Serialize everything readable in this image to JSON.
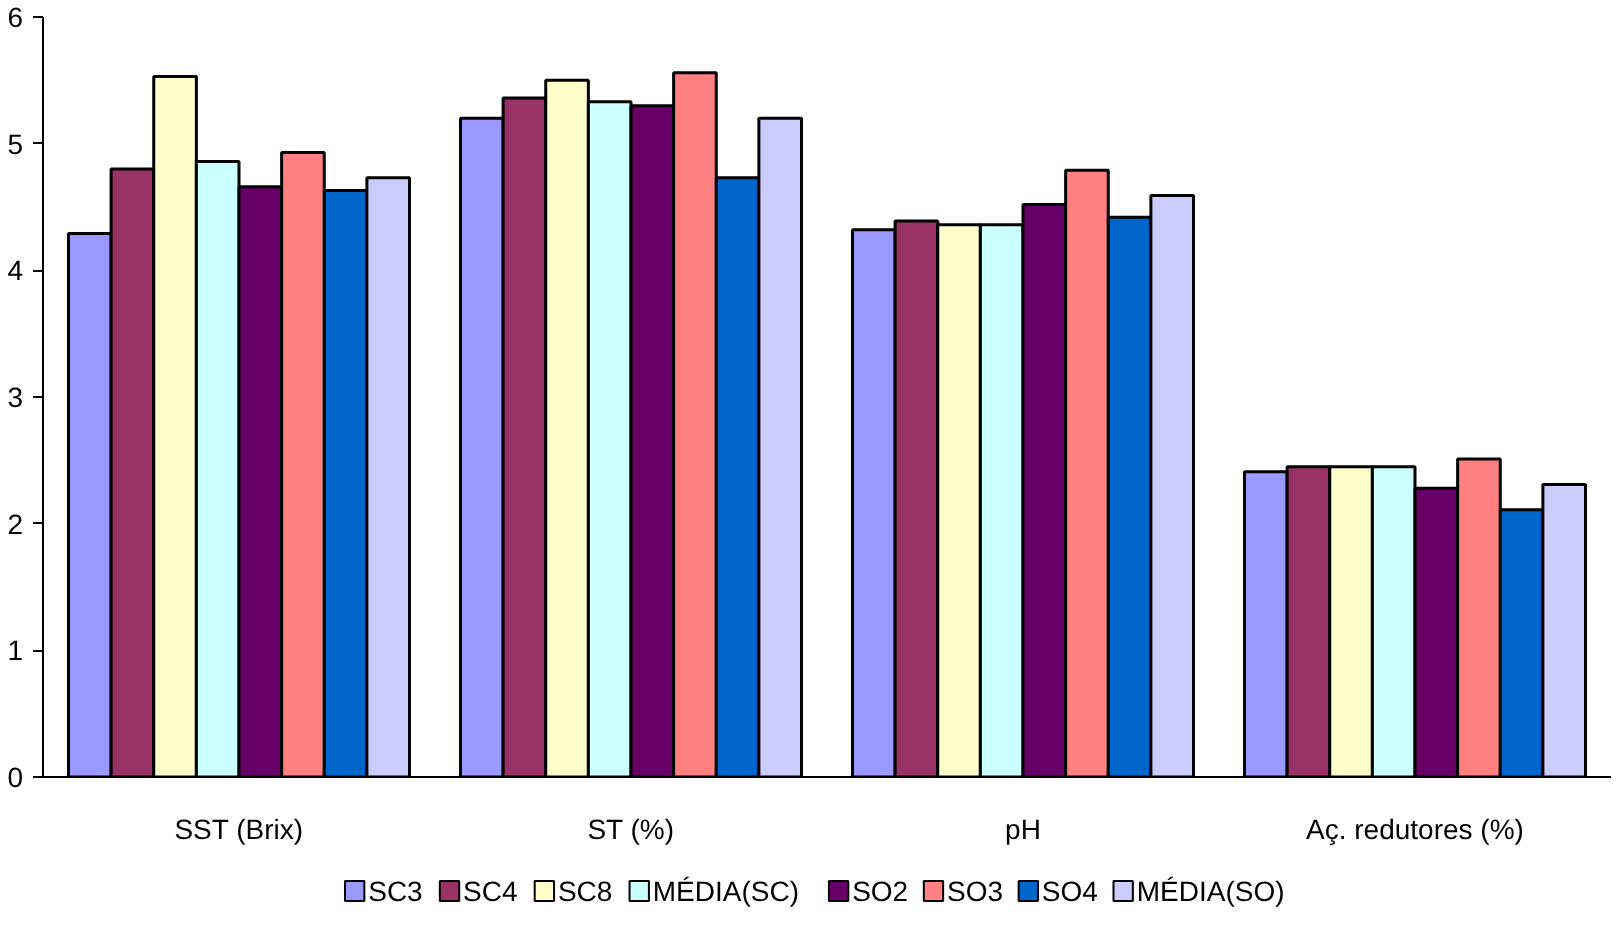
{
  "chart_data": {
    "type": "bar",
    "categories": [
      "SST (Brix)",
      "ST (%)",
      "pH",
      "Aç. redutores (%)"
    ],
    "series": [
      {
        "name": "SC3",
        "color": "#9999ff",
        "values": [
          4.29,
          5.2,
          4.32,
          2.41
        ]
      },
      {
        "name": "SC4",
        "color": "#993366",
        "values": [
          4.8,
          5.36,
          4.39,
          2.45
        ]
      },
      {
        "name": "SC8",
        "color": "#ffffcc",
        "values": [
          5.53,
          5.5,
          4.36,
          2.45
        ]
      },
      {
        "name": "MÉDIA(SC)",
        "color": "#ccffff",
        "values": [
          4.86,
          5.33,
          4.36,
          2.45
        ]
      },
      {
        "name": "SO2",
        "color": "#660066",
        "values": [
          4.66,
          5.3,
          4.52,
          2.28
        ]
      },
      {
        "name": "SO3",
        "color": "#ff8080",
        "values": [
          4.93,
          5.56,
          4.79,
          2.51
        ]
      },
      {
        "name": "SO4",
        "color": "#0066cc",
        "values": [
          4.63,
          4.73,
          4.42,
          2.11
        ]
      },
      {
        "name": "MÉDIA(SO)",
        "color": "#ccccff",
        "values": [
          4.73,
          5.2,
          4.59,
          2.31
        ]
      }
    ],
    "ylim": [
      0,
      6
    ],
    "yticks": [
      0,
      1,
      2,
      3,
      4,
      5,
      6
    ],
    "grid": false,
    "legend": "bottom"
  }
}
